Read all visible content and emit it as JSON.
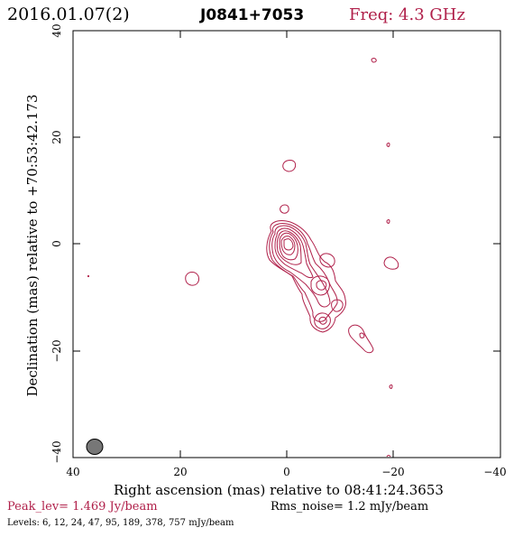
{
  "header": {
    "date": "2016.01.07(2)",
    "source": "J0841+7053",
    "freq": "Freq: 4.3 GHz"
  },
  "axes": {
    "x_title": "Right ascension (mas) relative to 08:41:24.3653",
    "y_title": "Declination (mas) relative to +70:53:42.173",
    "x_ticks": [
      "40",
      "20",
      "0",
      "−20",
      "−40"
    ],
    "y_ticks": [
      "40",
      "20",
      "0",
      "−20",
      "−40"
    ]
  },
  "footer": {
    "peak": "Peak_lev=  1.469 Jy/beam",
    "rms": "Rms_noise=   1.2 mJy/beam",
    "levels": "Levels:   6,  12,  24,  47,  95, 189, 378, 757 mJy/beam"
  },
  "colors": {
    "contour": "#b0204a",
    "beam": "#777777"
  },
  "chart_data": {
    "type": "contour",
    "xlim": [
      40,
      -40
    ],
    "ylim": [
      -40,
      40
    ],
    "beam": {
      "x": 36,
      "y": -38,
      "major": 3,
      "minor": 3
    },
    "core": {
      "x": 0,
      "y": 0
    },
    "levels_mJy": [
      6,
      12,
      24,
      47,
      95,
      189,
      378,
      757
    ]
  }
}
